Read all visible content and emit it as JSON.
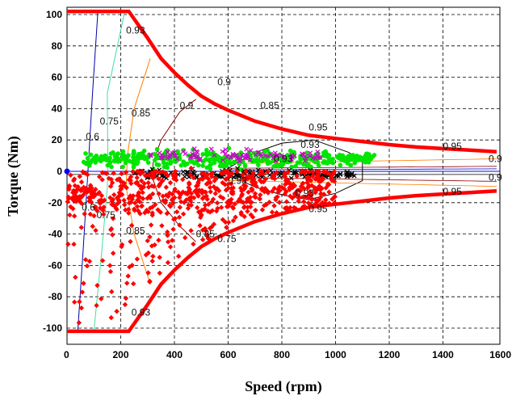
{
  "chart_data": {
    "type": "scatter",
    "xlabel": "Speed (rpm)",
    "ylabel": "Torque (Nm)",
    "xlim": [
      0,
      1600
    ],
    "ylim": [
      -105,
      105
    ],
    "x_ticks": [
      0,
      200,
      400,
      600,
      800,
      1000,
      1200,
      1400,
      1600
    ],
    "y_ticks": [
      -100,
      -80,
      -60,
      -40,
      -20,
      0,
      20,
      40,
      60,
      80,
      100
    ],
    "grid": true,
    "grid_style": "dashed",
    "colors": {
      "envelope": "#ff0000",
      "motoring_points": "#00e600",
      "generating_points": "#ff0000",
      "magenta_points": "#cc00cc",
      "black_points": "#000000",
      "eff_060": "#0000aa",
      "eff_075": "#40e0a0",
      "eff_085": "#ff8000",
      "eff_090": "#8b0000",
      "eff_093": "#000000",
      "zero_line": "#0000ff"
    },
    "envelope": [
      {
        "x": 0,
        "y": 102
      },
      {
        "x": 230,
        "y": 102
      },
      {
        "x": 300,
        "y": 85
      },
      {
        "x": 350,
        "y": 72
      },
      {
        "x": 400,
        "y": 63
      },
      {
        "x": 450,
        "y": 55
      },
      {
        "x": 500,
        "y": 48
      },
      {
        "x": 550,
        "y": 43
      },
      {
        "x": 600,
        "y": 39
      },
      {
        "x": 700,
        "y": 32
      },
      {
        "x": 800,
        "y": 27
      },
      {
        "x": 900,
        "y": 23
      },
      {
        "x": 1000,
        "y": 21
      },
      {
        "x": 1100,
        "y": 19
      },
      {
        "x": 1200,
        "y": 17
      },
      {
        "x": 1300,
        "y": 15.5
      },
      {
        "x": 1400,
        "y": 14.5
      },
      {
        "x": 1500,
        "y": 13.5
      },
      {
        "x": 1600,
        "y": 12.5
      }
    ],
    "efficiency_contours": [
      {
        "label": "0.6",
        "points": [
          [
            40,
            -102
          ],
          [
            60,
            -50
          ],
          [
            78,
            0
          ],
          [
            95,
            50
          ],
          [
            115,
            102
          ]
        ]
      },
      {
        "label": "0.75",
        "points": [
          [
            100,
            -102
          ],
          [
            130,
            -50
          ],
          [
            150,
            -10
          ],
          [
            152,
            10
          ],
          [
            150,
            50
          ],
          [
            215,
            102
          ]
        ]
      },
      {
        "label": "0.85",
        "points": [
          [
            310,
            -72
          ],
          [
            250,
            -40
          ],
          [
            220,
            -10
          ],
          [
            225,
            10
          ],
          [
            250,
            40
          ],
          [
            310,
            72
          ]
        ]
      },
      {
        "label": "0.9",
        "points": [
          [
            480,
            -45
          ],
          [
            420,
            -35
          ],
          [
            350,
            -20
          ],
          [
            320,
            -5
          ],
          [
            320,
            5
          ],
          [
            350,
            20
          ],
          [
            420,
            38
          ],
          [
            480,
            46
          ]
        ]
      },
      {
        "label": "0.93",
        "points": [
          [
            600,
            2
          ],
          [
            700,
            12
          ],
          [
            800,
            18
          ],
          [
            920,
            20
          ],
          [
            1050,
            12
          ],
          [
            1100,
            6
          ],
          [
            1100,
            -6
          ],
          [
            1000,
            -14
          ],
          [
            900,
            -18
          ],
          [
            800,
            -15
          ],
          [
            700,
            -10
          ],
          [
            600,
            -2
          ]
        ]
      }
    ],
    "contour_labels": [
      {
        "text": "0.6",
        "x": 70,
        "y": 20
      },
      {
        "text": "0.75",
        "x": 122,
        "y": 30
      },
      {
        "text": "0.85",
        "x": 240,
        "y": 35
      },
      {
        "text": "0.9",
        "x": 420,
        "y": 40
      },
      {
        "text": "0.93",
        "x": 870,
        "y": 15
      },
      {
        "text": "0.93",
        "x": 770,
        "y": 6
      },
      {
        "text": "0.93",
        "x": 220,
        "y": 88
      },
      {
        "text": "0.9",
        "x": 560,
        "y": 55
      },
      {
        "text": "0.85",
        "x": 720,
        "y": 40
      },
      {
        "text": "0.95",
        "x": 900,
        "y": 26
      },
      {
        "text": "0.95",
        "x": 1400,
        "y": 14
      },
      {
        "text": "0.9",
        "x": 1570,
        "y": 6
      },
      {
        "text": "0.93",
        "x": 600,
        "y": -8
      },
      {
        "text": "0.93",
        "x": 850,
        "y": -16
      },
      {
        "text": "0.95",
        "x": 900,
        "y": -26
      },
      {
        "text": "0.95",
        "x": 1400,
        "y": -15
      },
      {
        "text": "0.9",
        "x": 1570,
        "y": -6
      },
      {
        "text": "0.85",
        "x": 480,
        "y": -42
      },
      {
        "text": "0.75",
        "x": 560,
        "y": -45
      },
      {
        "text": "0.6",
        "x": 55,
        "y": -25
      },
      {
        "text": "0.75",
        "x": 110,
        "y": -30
      },
      {
        "text": "0.85",
        "x": 220,
        "y": -40
      },
      {
        "text": "0.93",
        "x": 240,
        "y": -92
      }
    ],
    "point_clouds": [
      {
        "color_key": "motoring_points",
        "marker": "circle",
        "x_range": [
          60,
          1150
        ],
        "y_center": 8,
        "y_spread": 9,
        "count": 420
      },
      {
        "color_key": "magenta_points",
        "marker": "cross",
        "x_range": [
          300,
          950
        ],
        "y_center": 10,
        "y_spread": 6,
        "count": 90
      },
      {
        "color_key": "black_points",
        "marker": "cross",
        "x_range": [
          250,
          1080
        ],
        "y_center": -2,
        "y_spread": 5,
        "count": 160
      },
      {
        "color_key": "generating_points",
        "marker": "diamond",
        "x_range": [
          0,
          1000
        ],
        "y_center": -15,
        "y_spread": 20,
        "count": 700
      }
    ]
  }
}
